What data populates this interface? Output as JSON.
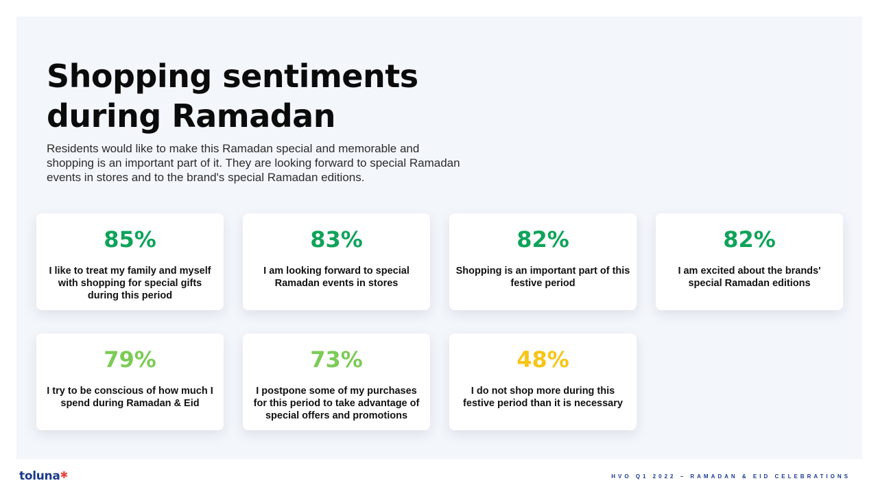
{
  "header": {
    "title_line1": "Shopping sentiments",
    "title_line2": "during Ramadan",
    "subtitle": "Residents would like to make this Ramadan special and memorable and shopping is an important part of it. They are looking forward to special Ramadan events in stores and to the brand's special Ramadan editions."
  },
  "colors": {
    "panel_background": "#f3f6fb",
    "green_dark": "#0fa35a",
    "green_light": "#7ccb57",
    "yellow": "#f5c518",
    "brand_blue": "#1a3a8c"
  },
  "cards": [
    {
      "pct": "85%",
      "text": "I like to treat my family and myself with shopping for special gifts during this period",
      "color": "#0fa35a"
    },
    {
      "pct": "83%",
      "text": "I am looking forward to special Ramadan events in stores",
      "color": "#0fa35a"
    },
    {
      "pct": "82%",
      "text": "Shopping is an important part of this festive period",
      "color": "#0fa35a"
    },
    {
      "pct": "82%",
      "text": "I am excited about the brands' special Ramadan editions",
      "color": "#0fa35a"
    },
    {
      "pct": "79%",
      "text": "I try to be conscious of how much I spend during Ramadan & Eid",
      "color": "#7ccb57"
    },
    {
      "pct": "73%",
      "text": "I postpone some of my purchases for this period to take advantage of special offers and promotions",
      "color": "#7ccb57"
    },
    {
      "pct": "48%",
      "text": "I do not shop more during this festive period than it is necessary",
      "color": "#f5c518"
    }
  ],
  "footer": {
    "logo_text": "toluna",
    "logo_mark": "✱",
    "caption": "HVO Q1 2022 – RAMADAN & EID CELEBRATIONS"
  }
}
